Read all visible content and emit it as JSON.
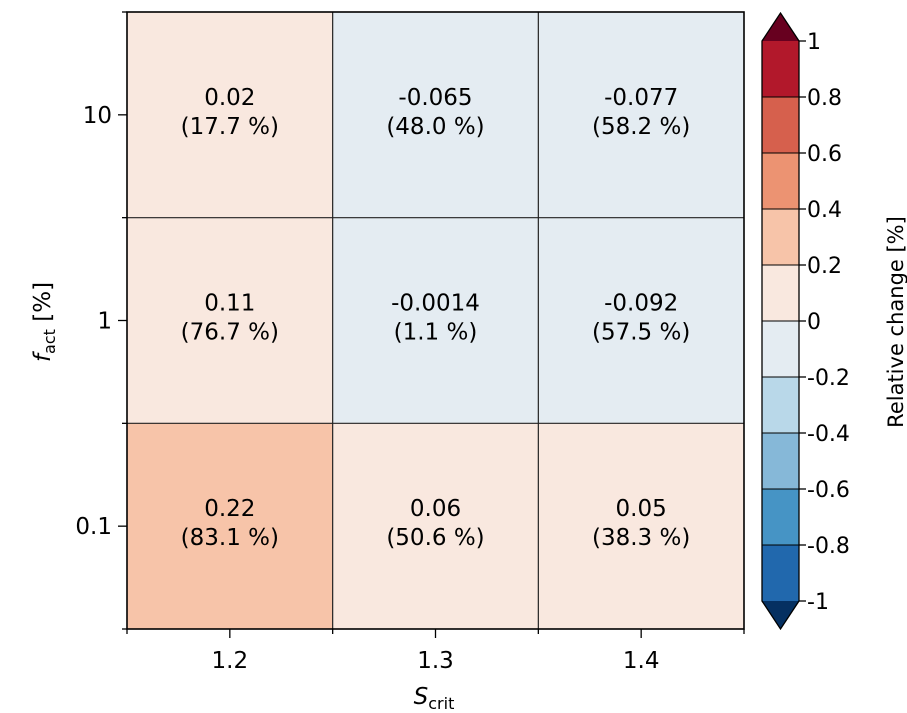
{
  "chart_data": {
    "type": "heatmap",
    "title": "",
    "xlabel_main": "S",
    "xlabel_sub": "crit",
    "ylabel_main": "f",
    "ylabel_sub": "act",
    "ylabel_rest": " [%]",
    "x_categories": [
      "1.2",
      "1.3",
      "1.4"
    ],
    "y_categories": [
      "0.1",
      "1",
      "10"
    ],
    "cells": [
      {
        "x": "1.2",
        "y": "10",
        "value": 0.02,
        "value_label": "0.02",
        "pct_label": "(17.7 %)"
      },
      {
        "x": "1.3",
        "y": "10",
        "value": -0.065,
        "value_label": "-0.065",
        "pct_label": "(48.0 %)"
      },
      {
        "x": "1.4",
        "y": "10",
        "value": -0.077,
        "value_label": "-0.077",
        "pct_label": "(58.2 %)"
      },
      {
        "x": "1.2",
        "y": "1",
        "value": 0.11,
        "value_label": "0.11",
        "pct_label": "(76.7 %)"
      },
      {
        "x": "1.3",
        "y": "1",
        "value": -0.0014,
        "value_label": "-0.0014",
        "pct_label": "(1.1 %)"
      },
      {
        "x": "1.4",
        "y": "1",
        "value": -0.092,
        "value_label": "-0.092",
        "pct_label": "(57.5 %)"
      },
      {
        "x": "1.2",
        "y": "0.1",
        "value": 0.22,
        "value_label": "0.22",
        "pct_label": "(83.1 %)"
      },
      {
        "x": "1.3",
        "y": "0.1",
        "value": 0.06,
        "value_label": "0.06",
        "pct_label": "(50.6 %)"
      },
      {
        "x": "1.4",
        "y": "0.1",
        "value": 0.05,
        "value_label": "0.05",
        "pct_label": "(38.3 %)"
      }
    ],
    "colorbar": {
      "label": "Relative change [%]",
      "range": [
        -1,
        1
      ],
      "extend": "both",
      "bins": [
        {
          "lo": 0.8,
          "hi": 1.0,
          "color": "#b2182b"
        },
        {
          "lo": 0.6,
          "hi": 0.8,
          "color": "#d6604d"
        },
        {
          "lo": 0.4,
          "hi": 0.6,
          "color": "#ec9372"
        },
        {
          "lo": 0.2,
          "hi": 0.4,
          "color": "#f7c4a9"
        },
        {
          "lo": 0.0,
          "hi": 0.2,
          "color": "#f9e8df"
        },
        {
          "lo": -0.2,
          "hi": 0.0,
          "color": "#e4ecf2"
        },
        {
          "lo": -0.4,
          "hi": -0.2,
          "color": "#b9d8e9"
        },
        {
          "lo": -0.6,
          "hi": -0.4,
          "color": "#86b8d8"
        },
        {
          "lo": -0.8,
          "hi": -0.6,
          "color": "#4694c5"
        },
        {
          "lo": -1.0,
          "hi": -0.8,
          "color": "#2168ad"
        }
      ],
      "over_color": "#67001f",
      "under_color": "#053061",
      "ticks": [
        "1",
        "0.8",
        "0.6",
        "0.4",
        "0.2",
        "0",
        "-0.2",
        "-0.4",
        "-0.6",
        "-0.8",
        "-1"
      ]
    }
  }
}
